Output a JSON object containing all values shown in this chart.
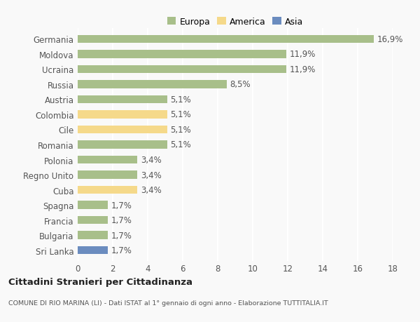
{
  "categories": [
    "Germania",
    "Moldova",
    "Ucraina",
    "Russia",
    "Austria",
    "Colombia",
    "Cile",
    "Romania",
    "Polonia",
    "Regno Unito",
    "Cuba",
    "Spagna",
    "Francia",
    "Bulgaria",
    "Sri Lanka"
  ],
  "values": [
    16.9,
    11.9,
    11.9,
    8.5,
    5.1,
    5.1,
    5.1,
    5.1,
    3.4,
    3.4,
    3.4,
    1.7,
    1.7,
    1.7,
    1.7
  ],
  "labels": [
    "16,9%",
    "11,9%",
    "11,9%",
    "8,5%",
    "5,1%",
    "5,1%",
    "5,1%",
    "5,1%",
    "3,4%",
    "3,4%",
    "3,4%",
    "1,7%",
    "1,7%",
    "1,7%",
    "1,7%"
  ],
  "colors": [
    "#a8bf8a",
    "#a8bf8a",
    "#a8bf8a",
    "#a8bf8a",
    "#a8bf8a",
    "#f5d98a",
    "#f5d98a",
    "#a8bf8a",
    "#a8bf8a",
    "#a8bf8a",
    "#f5d98a",
    "#a8bf8a",
    "#a8bf8a",
    "#a8bf8a",
    "#6b8cbf"
  ],
  "legend": [
    {
      "label": "Europa",
      "color": "#a8bf8a"
    },
    {
      "label": "America",
      "color": "#f5d98a"
    },
    {
      "label": "Asia",
      "color": "#6b8cbf"
    }
  ],
  "xlim": [
    0,
    18
  ],
  "xticks": [
    0,
    2,
    4,
    6,
    8,
    10,
    12,
    14,
    16,
    18
  ],
  "title": "Cittadini Stranieri per Cittadinanza",
  "subtitle": "COMUNE DI RIO MARINA (LI) - Dati ISTAT al 1° gennaio di ogni anno - Elaborazione TUTTITALIA.IT",
  "background_color": "#f9f9f9",
  "bar_height": 0.55,
  "grid_color": "#ffffff",
  "label_fontsize": 8.5,
  "tick_fontsize": 8.5
}
